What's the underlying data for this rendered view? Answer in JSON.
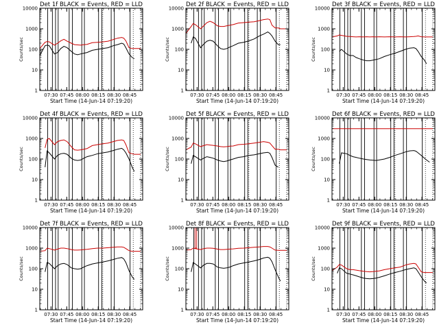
{
  "figure": {
    "x_label": "Start Time (14-Jun-14 07:19:20)",
    "y_label": "Counts/sec",
    "x_tick_labels": [
      "07:30",
      "07:45",
      "08:00",
      "08:15",
      "08:30",
      "08:45"
    ],
    "y_tick_labels": [
      "1",
      "10",
      "100",
      "1000",
      "10000"
    ],
    "colors": {
      "events": "#000000",
      "lld": "#cc0000",
      "axes": "#000000",
      "background": "#ffffff"
    }
  },
  "chart_data": [
    {
      "type": "line",
      "title": "Det 1f BLACK = Events, RED = LLD",
      "xlabel": "Start Time (14-Jun-14 07:19:20)",
      "ylabel": "Counts/sec",
      "x_unit": "minutes after 07:19:20",
      "xlim": [
        0,
        98
      ],
      "ylim": [
        1,
        10000
      ],
      "y_scale": "log",
      "x": [
        0,
        5,
        7,
        9,
        14,
        17,
        20,
        23,
        26,
        30,
        33,
        36,
        39,
        42,
        45,
        50,
        55,
        60,
        65,
        70,
        74,
        78,
        80,
        82,
        85,
        88,
        90,
        93,
        96
      ],
      "series": [
        {
          "name": "Events",
          "values": [
            50,
            150,
            160,
            150,
            60,
            70,
            110,
            140,
            120,
            80,
            60,
            55,
            60,
            65,
            70,
            90,
            100,
            110,
            120,
            150,
            170,
            200,
            180,
            120,
            60,
            40,
            35,
            null,
            null
          ]
        },
        {
          "name": "LLD",
          "values": [
            110,
            220,
            240,
            230,
            160,
            200,
            260,
            310,
            250,
            200,
            170,
            165,
            160,
            170,
            175,
            210,
            220,
            230,
            250,
            300,
            350,
            380,
            350,
            260,
            120,
            110,
            110,
            110,
            110
          ]
        }
      ],
      "vlines_solid": [
        7.5,
        12,
        15,
        17.5,
        28,
        31,
        40,
        42.5,
        56,
        59,
        68,
        71,
        86
      ],
      "vlines_dotted": [
        60,
        89,
        96
      ]
    },
    {
      "type": "line",
      "title": "Det 2f BLACK = Events, RED = LLD",
      "xlabel": "Start Time (14-Jun-14 07:19:20)",
      "ylabel": "Counts/sec",
      "x_unit": "minutes after 07:19:20",
      "xlim": [
        0,
        98
      ],
      "ylim": [
        1,
        10000
      ],
      "y_scale": "log",
      "x": [
        0,
        5,
        7,
        9,
        14,
        17,
        20,
        23,
        26,
        30,
        33,
        36,
        39,
        42,
        45,
        50,
        55,
        60,
        65,
        70,
        74,
        78,
        80,
        82,
        85,
        88,
        90,
        93,
        96
      ],
      "series": [
        {
          "name": "Events",
          "values": [
            null,
            200,
            400,
            350,
            120,
            180,
            250,
            280,
            250,
            150,
            110,
            100,
            110,
            130,
            150,
            200,
            220,
            260,
            320,
            450,
            550,
            700,
            600,
            450,
            250,
            170,
            170,
            null,
            null
          ]
        },
        {
          "name": "LLD",
          "values": [
            600,
            1300,
            1800,
            1600,
            1000,
            1400,
            2000,
            2300,
            2000,
            1400,
            1300,
            1300,
            1400,
            1500,
            1600,
            1900,
            2000,
            2100,
            2200,
            2500,
            2800,
            3000,
            2800,
            1500,
            1100,
            1100,
            1000,
            1000,
            1000
          ]
        }
      ],
      "vlines_solid": [
        7.5,
        12,
        15,
        17.5,
        28,
        31,
        40,
        42.5,
        56,
        59,
        68,
        71,
        86
      ],
      "vlines_dotted": [
        60,
        89,
        96
      ]
    },
    {
      "type": "line",
      "title": "Det 3f BLACK = Events, RED = LLD",
      "xlabel": "Start Time (14-Jun-14 07:19:20)",
      "ylabel": "Counts/sec",
      "x_unit": "minutes after 07:19:20",
      "xlim": [
        0,
        98
      ],
      "ylim": [
        1,
        10000
      ],
      "y_scale": "log",
      "x": [
        0,
        5,
        7,
        9,
        14,
        17,
        20,
        23,
        26,
        30,
        33,
        36,
        39,
        42,
        45,
        50,
        55,
        60,
        65,
        70,
        74,
        78,
        80,
        82,
        85,
        88,
        90,
        93,
        96
      ],
      "series": [
        {
          "name": "Events",
          "values": [
            null,
            null,
            80,
            100,
            60,
            50,
            50,
            40,
            35,
            30,
            28,
            28,
            30,
            32,
            35,
            45,
            55,
            65,
            80,
            100,
            115,
            120,
            110,
            80,
            45,
            30,
            20,
            null,
            null
          ]
        },
        {
          "name": "LLD",
          "values": [
            400,
            450,
            500,
            480,
            430,
            420,
            410,
            400,
            410,
            400,
            410,
            400,
            410,
            400,
            410,
            400,
            410,
            400,
            410,
            400,
            410,
            420,
            430,
            450,
            410,
            400,
            400,
            400,
            400
          ]
        }
      ],
      "vlines_solid": [
        7.5,
        12,
        15,
        17.5,
        28,
        31,
        40,
        42.5,
        56,
        59,
        68,
        71,
        86
      ],
      "vlines_dotted": [
        60,
        89,
        96
      ]
    },
    {
      "type": "line",
      "title": "Det 4f BLACK = Events, RED = LLD",
      "xlabel": "Start Time (14-Jun-14 07:19:20)",
      "ylabel": "Counts/sec",
      "x_unit": "minutes after 07:19:20",
      "xlim": [
        0,
        98
      ],
      "ylim": [
        1,
        10000
      ],
      "y_scale": "log",
      "x": [
        0,
        5,
        7,
        9,
        14,
        17,
        20,
        23,
        26,
        30,
        33,
        36,
        39,
        42,
        45,
        50,
        55,
        60,
        65,
        70,
        74,
        78,
        80,
        82,
        85,
        88,
        90,
        93,
        96
      ],
      "series": [
        {
          "name": "Events",
          "values": [
            null,
            40,
            250,
            200,
            100,
            150,
            180,
            190,
            170,
            110,
            90,
            85,
            90,
            110,
            130,
            150,
            180,
            200,
            220,
            260,
            300,
            330,
            280,
            200,
            100,
            40,
            25,
            null,
            null
          ]
        },
        {
          "name": "LLD",
          "values": [
            null,
            350,
            900,
            1000,
            500,
            700,
            800,
            850,
            700,
            400,
            280,
            270,
            280,
            300,
            320,
            450,
            500,
            550,
            600,
            700,
            800,
            850,
            800,
            500,
            200,
            180,
            170,
            170,
            170
          ]
        }
      ],
      "vlines_solid": [
        7.5,
        12,
        15,
        17.5,
        28,
        31,
        40,
        42.5,
        56,
        59,
        68,
        71,
        86
      ],
      "vlines_dotted": [
        60,
        89,
        96
      ]
    },
    {
      "type": "line",
      "title": "Det 5f BLACK = Events, RED = LLD",
      "xlabel": "Start Time (14-Jun-14 07:19:20)",
      "ylabel": "Counts/sec",
      "x_unit": "minutes after 07:19:20",
      "xlim": [
        0,
        98
      ],
      "ylim": [
        1,
        10000
      ],
      "y_scale": "log",
      "x": [
        0,
        5,
        7,
        9,
        14,
        17,
        20,
        23,
        26,
        30,
        33,
        36,
        39,
        42,
        45,
        50,
        55,
        60,
        65,
        70,
        74,
        78,
        80,
        82,
        85,
        88,
        90,
        93,
        96
      ],
      "series": [
        {
          "name": "Events",
          "values": [
            null,
            60,
            150,
            130,
            90,
            110,
            130,
            120,
            110,
            90,
            80,
            75,
            80,
            90,
            100,
            120,
            130,
            150,
            160,
            180,
            200,
            210,
            190,
            120,
            50,
            40,
            null,
            null,
            null
          ]
        },
        {
          "name": "LLD",
          "values": [
            280,
            380,
            600,
            550,
            400,
            450,
            500,
            480,
            460,
            430,
            400,
            390,
            400,
            420,
            430,
            500,
            520,
            550,
            600,
            650,
            700,
            650,
            600,
            450,
            300,
            300,
            280,
            280,
            280
          ]
        }
      ],
      "vlines_solid": [
        7.5,
        12,
        15,
        17.5,
        28,
        31,
        40,
        42.5,
        56,
        59,
        68,
        71,
        86
      ],
      "vlines_dotted": [
        60,
        89,
        96
      ]
    },
    {
      "type": "line",
      "title": "Det 6f BLACK = Events, RED = LLD",
      "xlabel": "Start Time (14-Jun-14 07:19:20)",
      "ylabel": "Counts/sec",
      "x_unit": "minutes after 07:19:20",
      "xlim": [
        0,
        98
      ],
      "ylim": [
        1,
        10000
      ],
      "y_scale": "log",
      "x": [
        0,
        5,
        7,
        9,
        14,
        17,
        20,
        23,
        26,
        30,
        33,
        36,
        39,
        42,
        45,
        50,
        55,
        60,
        65,
        70,
        74,
        78,
        80,
        82,
        85,
        88,
        90,
        93,
        96
      ],
      "series": [
        {
          "name": "Events",
          "values": [
            null,
            null,
            60,
            200,
            180,
            150,
            130,
            120,
            110,
            100,
            95,
            90,
            88,
            85,
            90,
            100,
            120,
            150,
            180,
            220,
            250,
            260,
            240,
            200,
            150,
            110,
            90,
            70,
            null
          ]
        },
        {
          "name": "LLD",
          "values": [
            3000,
            3000,
            3000,
            3000,
            3000,
            3000,
            3000,
            3000,
            3000,
            3000,
            3000,
            3000,
            3000,
            3000,
            3000,
            3000,
            3000,
            3000,
            3000,
            3000,
            3000,
            3000,
            3000,
            3000,
            3000,
            3000,
            3000,
            3000,
            3000
          ]
        }
      ],
      "vlines_solid": [
        7.5,
        12,
        15,
        17.5,
        28,
        31,
        40,
        42.5,
        56,
        59,
        68,
        71,
        86
      ],
      "vlines_dotted": [
        60,
        89,
        96
      ]
    },
    {
      "type": "line",
      "title": "Det 7f BLACK = Events, RED = LLD",
      "xlabel": "Start Time (14-Jun-14 07:19:20)",
      "ylabel": "Counts/sec",
      "x_unit": "minutes after 07:19:20",
      "xlim": [
        0,
        98
      ],
      "ylim": [
        1,
        10000
      ],
      "y_scale": "log",
      "x": [
        0,
        5,
        7,
        9,
        14,
        17,
        20,
        23,
        26,
        30,
        33,
        36,
        39,
        42,
        45,
        50,
        55,
        60,
        65,
        70,
        74,
        78,
        80,
        82,
        85,
        88,
        90,
        93,
        96
      ],
      "series": [
        {
          "name": "Events",
          "values": [
            null,
            70,
            200,
            180,
            100,
            140,
            170,
            180,
            160,
            110,
            100,
            95,
            100,
            120,
            140,
            170,
            190,
            210,
            240,
            280,
            320,
            350,
            300,
            200,
            80,
            40,
            30,
            null,
            null
          ]
        },
        {
          "name": "LLD",
          "values": [
            700,
            750,
            1000,
            950,
            800,
            900,
            1000,
            1000,
            950,
            850,
            800,
            800,
            820,
            850,
            870,
            950,
            1000,
            1000,
            1050,
            1100,
            1150,
            1150,
            1100,
            950,
            750,
            700,
            700,
            700,
            700
          ]
        }
      ],
      "vlines_solid": [
        7.5,
        12,
        15,
        17.5,
        28,
        31,
        40,
        42.5,
        56,
        59,
        68,
        71,
        86
      ],
      "vlines_dotted": [
        60,
        89,
        96
      ]
    },
    {
      "type": "line",
      "title": "Det 8f BLACK = Events, RED = LLD",
      "xlabel": "Start Time (14-Jun-14 07:19:20)",
      "ylabel": "Counts/sec",
      "x_unit": "minutes after 07:19:20",
      "xlim": [
        0,
        98
      ],
      "ylim": [
        1,
        10000
      ],
      "y_scale": "log",
      "x": [
        0,
        5,
        7,
        9,
        14,
        17,
        20,
        23,
        26,
        30,
        33,
        36,
        39,
        42,
        45,
        50,
        55,
        60,
        65,
        70,
        74,
        78,
        80,
        82,
        85,
        88,
        90,
        93,
        96
      ],
      "series": [
        {
          "name": "Events",
          "values": [
            null,
            70,
            200,
            170,
            110,
            150,
            180,
            180,
            170,
            120,
            110,
            105,
            110,
            120,
            140,
            170,
            190,
            210,
            240,
            280,
            330,
            360,
            320,
            220,
            90,
            40,
            25,
            null,
            null
          ]
        },
        {
          "name": "LLD",
          "values": [
            800,
            850,
            1000,
            950,
            850,
            950,
            1000,
            1000,
            980,
            900,
            850,
            850,
            870,
            900,
            920,
            980,
            1000,
            1050,
            1100,
            1150,
            1200,
            1200,
            1150,
            1000,
            800,
            780,
            780,
            780,
            780
          ]
        }
      ],
      "spike": {
        "x": 9.5,
        "value": 10000
      },
      "vlines_solid": [
        7.5,
        12,
        15,
        17.5,
        28,
        31,
        40,
        42.5,
        56,
        59,
        68,
        71,
        86
      ],
      "vlines_dotted": [
        60,
        89,
        96
      ]
    },
    {
      "type": "line",
      "title": "Det 9f BLACK = Events, RED = LLD",
      "xlabel": "Start Time (14-Jun-14 07:19:20)",
      "ylabel": "Counts/sec",
      "x_unit": "minutes after 07:19:20",
      "xlim": [
        0,
        98
      ],
      "ylim": [
        1,
        10000
      ],
      "y_scale": "log",
      "x": [
        0,
        5,
        7,
        9,
        14,
        17,
        20,
        23,
        26,
        30,
        33,
        36,
        39,
        42,
        45,
        50,
        55,
        60,
        65,
        70,
        74,
        78,
        80,
        82,
        85,
        88,
        90,
        93,
        96
      ],
      "series": [
        {
          "name": "Events",
          "values": [
            null,
            60,
            110,
            100,
            60,
            55,
            50,
            45,
            40,
            35,
            33,
            32,
            33,
            35,
            38,
            45,
            55,
            65,
            75,
            90,
            100,
            110,
            100,
            70,
            40,
            25,
            20,
            null,
            null
          ]
        },
        {
          "name": "LLD",
          "values": [
            80,
            120,
            160,
            150,
            100,
            90,
            90,
            85,
            80,
            75,
            72,
            70,
            72,
            75,
            78,
            90,
            100,
            110,
            120,
            150,
            170,
            180,
            170,
            120,
            70,
            65,
            65,
            65,
            65
          ]
        }
      ],
      "vlines_solid": [
        7.5,
        12,
        15,
        17.5,
        28,
        31,
        40,
        42.5,
        56,
        59,
        68,
        71,
        86
      ],
      "vlines_dotted": [
        60,
        89,
        96
      ]
    }
  ]
}
